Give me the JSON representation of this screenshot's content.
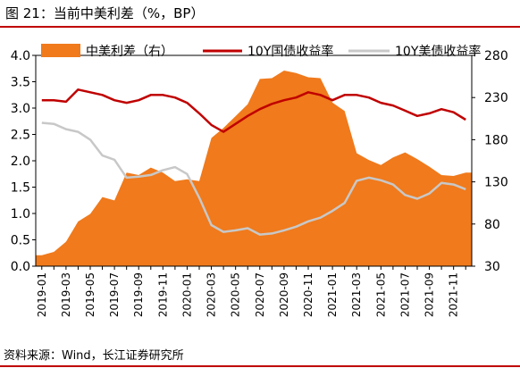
{
  "header": {
    "figure_title": "图 21：当前中美利差（%，BP）"
  },
  "footer": {
    "source": "资料来源：Wind，长江证券研究所"
  },
  "colors": {
    "spread": "#f07a1c",
    "cn10y": "#c00000",
    "us10y": "#c8c8c8",
    "rule": "#c00000"
  },
  "chart_data": {
    "type": "area",
    "categories": [
      "2019-01",
      "2019-02",
      "2019-03",
      "2019-04",
      "2019-05",
      "2019-06",
      "2019-07",
      "2019-08",
      "2019-09",
      "2019-10",
      "2019-11",
      "2019-12",
      "2020-01",
      "2020-02",
      "2020-03",
      "2020-04",
      "2020-05",
      "2020-06",
      "2020-07",
      "2020-08",
      "2020-09",
      "2020-10",
      "2020-11",
      "2020-12",
      "2021-01",
      "2021-02",
      "2021-03",
      "2021-04",
      "2021-05",
      "2021-06",
      "2021-07",
      "2021-08",
      "2021-09",
      "2021-10",
      "2021-11",
      "2021-12"
    ],
    "x_tick_labels": [
      "2019-01",
      "2019-03",
      "2019-05",
      "2019-07",
      "2019-09",
      "2019-11",
      "2020-01",
      "2020-03",
      "2020-05",
      "2020-07",
      "2020-09",
      "2020-11",
      "2021-01",
      "2021-03",
      "2021-05",
      "2021-07",
      "2021-09",
      "2021-11"
    ],
    "left_axis": {
      "ylim": [
        0,
        4.0
      ],
      "ticks": [
        "0.0",
        "0.5",
        "1.0",
        "1.5",
        "2.0",
        "2.5",
        "3.0",
        "3.5",
        "4.0"
      ]
    },
    "right_axis": {
      "ylim": [
        30,
        280
      ],
      "ticks": [
        "30",
        "80",
        "130",
        "180",
        "230",
        "280"
      ]
    },
    "legend_position": "top",
    "series": [
      {
        "name": "中美利差（右）",
        "kind": "area",
        "axis": "right",
        "values": [
          43,
          47,
          59,
          83,
          92,
          112,
          108,
          141,
          138,
          147,
          141,
          131,
          133,
          131,
          182,
          194,
          208,
          222,
          252,
          253,
          262,
          259,
          254,
          253,
          224,
          214,
          164,
          156,
          150,
          159,
          165,
          157,
          148,
          138,
          137,
          141
        ]
      },
      {
        "name": "10Y国债收益率",
        "kind": "line",
        "axis": "left",
        "values": [
          3.15,
          3.15,
          3.12,
          3.35,
          3.3,
          3.25,
          3.15,
          3.1,
          3.15,
          3.25,
          3.25,
          3.2,
          3.1,
          2.9,
          2.68,
          2.55,
          2.7,
          2.85,
          2.98,
          3.08,
          3.15,
          3.2,
          3.3,
          3.25,
          3.15,
          3.25,
          3.25,
          3.2,
          3.1,
          3.05,
          2.95,
          2.85,
          2.9,
          2.98,
          2.92,
          2.78
        ]
      },
      {
        "name": "10Y美债收益率",
        "kind": "line",
        "axis": "left",
        "values": [
          2.72,
          2.7,
          2.6,
          2.55,
          2.4,
          2.1,
          2.02,
          1.68,
          1.7,
          1.73,
          1.82,
          1.88,
          1.75,
          1.3,
          0.78,
          0.65,
          0.68,
          0.72,
          0.6,
          0.62,
          0.68,
          0.75,
          0.85,
          0.92,
          1.05,
          1.2,
          1.62,
          1.68,
          1.63,
          1.55,
          1.35,
          1.28,
          1.38,
          1.58,
          1.55,
          1.46
        ]
      }
    ]
  }
}
